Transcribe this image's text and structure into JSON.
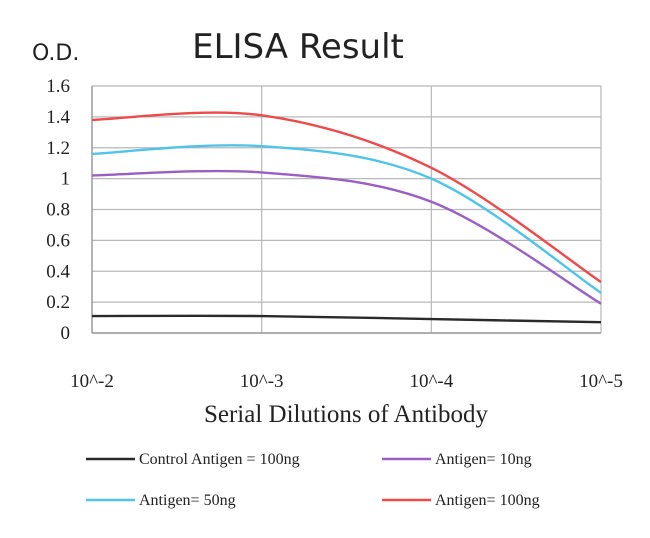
{
  "chart_data": {
    "type": "line",
    "title": "ELISA Result",
    "ylabel": "O.D.",
    "xlabel": "Serial Dilutions of Antibody",
    "categories": [
      "10^-2",
      "10^-3",
      "10^-4",
      "10^-5"
    ],
    "ylim": [
      0,
      1.6
    ],
    "yticks": [
      "0",
      "0.2",
      "0.4",
      "0.6",
      "0.8",
      "1",
      "1.2",
      "1.4",
      "1.6"
    ],
    "grid": true,
    "legend_position": "bottom",
    "series": [
      {
        "name": "Control Antigen = 100ng",
        "color": "#2a2a2a",
        "values": [
          0.11,
          0.11,
          0.09,
          0.07
        ]
      },
      {
        "name": "Antigen= 10ng",
        "color": "#9a5fc4",
        "values": [
          1.02,
          1.04,
          0.85,
          0.19
        ]
      },
      {
        "name": "Antigen= 50ng",
        "color": "#4fc3e8",
        "values": [
          1.16,
          1.21,
          1.0,
          0.26
        ]
      },
      {
        "name": "Antigen= 100ng",
        "color": "#ec4b4b",
        "values": [
          1.38,
          1.41,
          1.07,
          0.33
        ]
      }
    ]
  }
}
